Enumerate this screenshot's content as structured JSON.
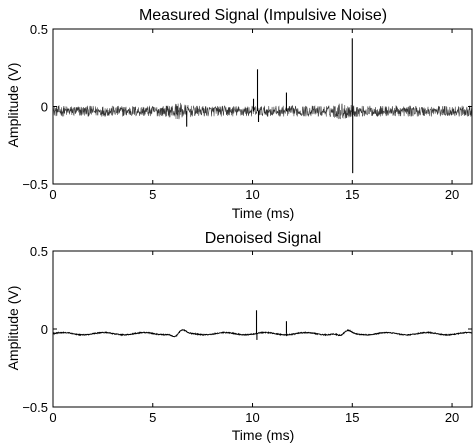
{
  "chart_data": [
    {
      "type": "line",
      "title": "Measured Signal (Impulsive Noise)",
      "xlabel": "Time (ms)",
      "ylabel": "Amplitude (V)",
      "xlim": [
        0,
        21
      ],
      "ylim": [
        -0.5,
        0.5
      ],
      "xticks": [
        0,
        5,
        10,
        15,
        20
      ],
      "yticks": [
        -0.5,
        0,
        0.5
      ],
      "ytick_labels": [
        "−0.5",
        "0",
        "0.5"
      ],
      "grid": false,
      "legend": "none",
      "series": [
        {
          "color": "#000000",
          "baseline_noise_band": 0.035,
          "envelope_bumps": [
            {
              "center": 6.3,
              "width": 0.4,
              "extra": 0.02
            },
            {
              "center": 14.5,
              "width": 0.45,
              "extra": 0.02
            }
          ],
          "spikes": [
            {
              "x": 6.7,
              "value": -0.13
            },
            {
              "x": 10.05,
              "value": 0.05
            },
            {
              "x": 10.25,
              "value": 0.24
            },
            {
              "x": 10.3,
              "value": -0.1
            },
            {
              "x": 11.7,
              "value": 0.09
            },
            {
              "x": 15.0,
              "value": 0.44
            },
            {
              "x": 15.02,
              "value": -0.43
            }
          ]
        }
      ]
    },
    {
      "type": "line",
      "title": "Denoised Signal",
      "xlabel": "Time (ms)",
      "ylabel": "Amplitude (V)",
      "xlim": [
        0,
        21
      ],
      "ylim": [
        -0.5,
        0.5
      ],
      "xticks": [
        0,
        5,
        10,
        15,
        20
      ],
      "yticks": [
        -0.5,
        0,
        0.5
      ],
      "ytick_labels": [
        "−0.5",
        "0",
        "0.5"
      ],
      "grid": false,
      "legend": "none",
      "series": [
        {
          "color": "#000000",
          "baseline": -0.03,
          "oscillation": 0.012,
          "bumps": [
            {
              "center": 6.3,
              "amp": 0.025
            },
            {
              "center": 14.6,
              "amp": 0.02
            }
          ],
          "spikes": [
            {
              "x": 10.2,
              "value": 0.12
            },
            {
              "x": 10.22,
              "value": -0.07
            },
            {
              "x": 11.7,
              "value": 0.05
            }
          ]
        }
      ]
    }
  ]
}
